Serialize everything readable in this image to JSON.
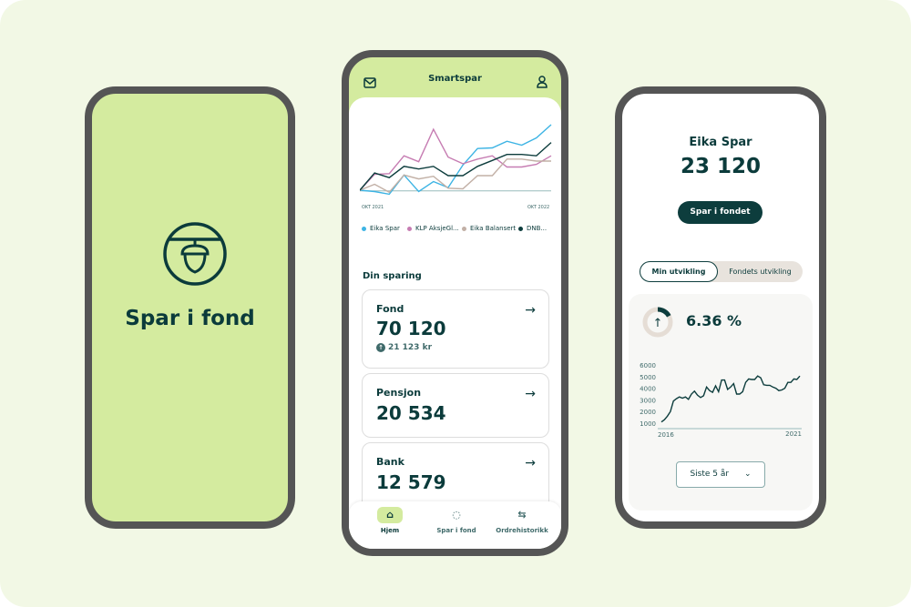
{
  "splash": {
    "title": "Spar i fond",
    "logo": "acorn-icon"
  },
  "home": {
    "header": {
      "title": "Smartspar",
      "left_icon": "mail-icon",
      "right_icon": "user-icon"
    },
    "chart_data": {
      "type": "line",
      "x_labels": [
        "OKT 2021",
        "OKT 2022"
      ],
      "ylim": [
        -10,
        100
      ],
      "series": [
        {
          "name": "Eika Spar",
          "color": "#3db4e4",
          "values": [
            1,
            -1,
            -5,
            24,
            -1,
            14,
            5,
            39,
            64,
            65,
            75,
            69,
            80,
            100
          ]
        },
        {
          "name": "KLP AksjeGl...",
          "color": "#c67cb2",
          "values": [
            1,
            25,
            26,
            53,
            44,
            93,
            51,
            41,
            48,
            53,
            36,
            36,
            40,
            53
          ]
        },
        {
          "name": "Eika Balansert",
          "color": "#c2b0a6",
          "values": [
            1,
            10,
            -2,
            24,
            18,
            22,
            4,
            3,
            23,
            23,
            48,
            48,
            45,
            45
          ]
        },
        {
          "name": "DNB...",
          "color": "#0d3d3d",
          "values": [
            1,
            27,
            20,
            37,
            33,
            37,
            23,
            23,
            37,
            46,
            55,
            55,
            53,
            73
          ]
        }
      ]
    },
    "section_title": "Din sparing",
    "cards": [
      {
        "label": "Fond",
        "value": "70 120",
        "change": "21 123 kr"
      },
      {
        "label": "Pensjon",
        "value": "20 534"
      },
      {
        "label": "Bank",
        "value": "12 579"
      }
    ],
    "nav": [
      {
        "label": "Hjem",
        "icon": "home-icon",
        "active": true
      },
      {
        "label": "Spar i fond",
        "icon": "piggy-bank-icon"
      },
      {
        "label": "Ordrehistorikk",
        "icon": "swap-arrows-icon"
      }
    ]
  },
  "fund": {
    "name": "Eika Spar",
    "value": "23 120",
    "button": "Spar i fondet",
    "tabs": [
      "Min utvikling",
      "Fondets utvikling"
    ],
    "active_tab": 0,
    "return": "6.36 %",
    "ring_fill": 0.17,
    "chart_data": {
      "type": "line",
      "x_labels": [
        "2016",
        "2021"
      ],
      "y_ticks": [
        1000,
        2000,
        3000,
        4000,
        5000,
        6000
      ],
      "ylim": [
        1000,
        6000
      ],
      "xlim": [
        2016,
        2021.3
      ],
      "series": [
        {
          "color": "#0d3d3d",
          "values": [
            1100,
            1300,
            1600,
            2000,
            2900,
            3100,
            3250,
            3150,
            3250,
            3050,
            3500,
            3750,
            3400,
            3200,
            3350,
            4100,
            3800,
            3650,
            4200,
            3700,
            4700,
            4700,
            3900,
            4100,
            4400,
            3500,
            3500,
            3700,
            4500,
            4800,
            4750,
            4750,
            5050,
            4900,
            4300,
            4250,
            4250,
            4100,
            4000,
            3800,
            3850,
            4000,
            4500,
            4500,
            4800,
            4750,
            5050
          ]
        }
      ]
    },
    "period": "Siste 5 år"
  }
}
